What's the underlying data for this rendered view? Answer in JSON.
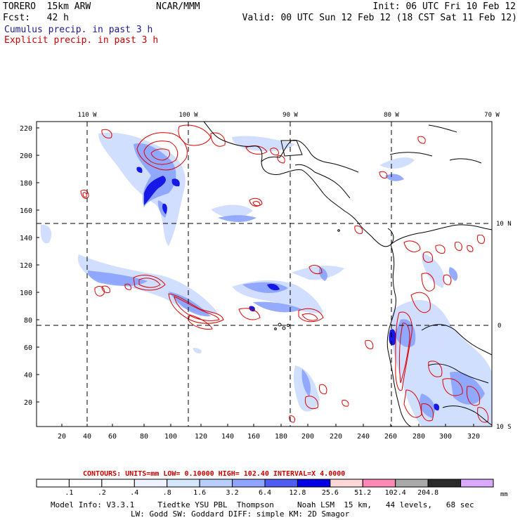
{
  "header": {
    "model": "TORERO  15km ARW",
    "org": "NCAR/MMM",
    "init": "Init: 06 UTC Fri 10 Feb 12",
    "fcst": "Fcst:   42 h",
    "valid": "Valid: 00 UTC Sun 12 Feb 12 (18 CST Sat 11 Feb 12)",
    "line_cumulus": "Cumulus precip. in past 3 h",
    "line_explicit": "Explicit precip. in past 3 h"
  },
  "map": {
    "lon_labels": [
      "110 W",
      "100 W",
      "90 W",
      "80 W",
      "70 W"
    ],
    "lat_labels": [
      "10 N",
      "0",
      "10 S"
    ],
    "x_ticks": [
      "20",
      "40",
      "60",
      "80",
      "100",
      "120",
      "140",
      "160",
      "180",
      "200",
      "220",
      "240",
      "260",
      "280",
      "300",
      "320"
    ],
    "y_ticks": [
      "220",
      "200",
      "180",
      "160",
      "140",
      "120",
      "100",
      "80",
      "60",
      "40",
      "20"
    ],
    "colors": {
      "cumulus_light": "#c9d9ff",
      "cumulus_mid": "#8aa2ff",
      "cumulus_dark": "#1818e6",
      "explicit_contour": "#dd0000",
      "coast": "#000000"
    }
  },
  "legend": {
    "contours_label": "CONTOURS:  UNITS=mm  LOW= 0.10000      HIGH=  102.40      INTERVAL=X  4.0000",
    "bin_labels": [
      ".1",
      ".2",
      ".4",
      ".8",
      "1.6",
      "3.2",
      "6.4",
      "12.8",
      "25.6",
      "51.2",
      "102.4",
      "204.8"
    ],
    "unit": "mm",
    "bin_colors": [
      "#ffffff",
      "#ffffff",
      "#ffffff",
      "#eef3ff",
      "#d6e6fb",
      "#b8cffd",
      "#8ea4ff",
      "#4f5cf2",
      "#0000e6",
      "#ffd9d9",
      "#ff88b6",
      "#a9a9a9",
      "#2a2a2a",
      "#d9a8ff"
    ]
  },
  "footer": {
    "line1": "Model Info: V3.3.1     Tiedtke YSU PBL  Thompson     Noah LSM  15 km,   44 levels,   68 sec",
    "line2": "LW: Godd SW: Goddard DIFF: simple KM: 2D Smagor"
  }
}
